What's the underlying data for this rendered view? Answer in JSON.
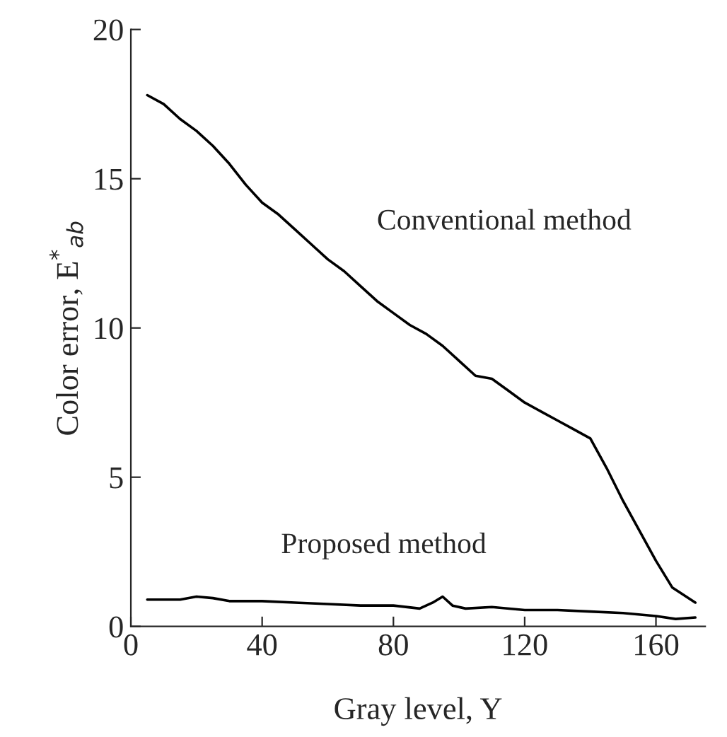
{
  "chart_data": {
    "type": "line",
    "xlabel": "Gray level, Y",
    "ylabel": "Color error, E$^{*}$$_{ab}$",
    "xlim": [
      0,
      175
    ],
    "ylim": [
      0,
      20
    ],
    "xticks": [
      0,
      40,
      80,
      120,
      160
    ],
    "yticks": [
      0,
      5,
      10,
      15,
      20
    ],
    "grid": false,
    "legend": false,
    "marker": "none",
    "line_style": "solid",
    "series": [
      {
        "name": "Conventional method",
        "color": "#000000",
        "x": [
          5,
          10,
          15,
          20,
          25,
          30,
          35,
          40,
          45,
          50,
          55,
          60,
          65,
          70,
          75,
          80,
          85,
          90,
          95,
          100,
          105,
          110,
          115,
          120,
          125,
          130,
          135,
          140,
          145,
          150,
          155,
          160,
          165,
          172
        ],
        "values": [
          17.8,
          17.5,
          17.0,
          16.6,
          16.1,
          15.5,
          14.8,
          14.2,
          13.8,
          13.3,
          12.8,
          12.3,
          11.9,
          11.4,
          10.9,
          10.5,
          10.1,
          9.8,
          9.4,
          8.9,
          8.4,
          8.3,
          7.9,
          7.5,
          7.2,
          6.9,
          6.6,
          6.3,
          5.3,
          4.2,
          3.2,
          2.2,
          1.3,
          0.8
        ]
      },
      {
        "name": "Proposed method",
        "color": "#000000",
        "x": [
          5,
          10,
          15,
          20,
          25,
          30,
          40,
          50,
          60,
          70,
          80,
          88,
          92,
          95,
          98,
          102,
          110,
          120,
          130,
          140,
          150,
          160,
          166,
          172
        ],
        "values": [
          0.9,
          0.9,
          0.9,
          1.0,
          0.95,
          0.85,
          0.85,
          0.8,
          0.75,
          0.7,
          0.7,
          0.6,
          0.8,
          1.0,
          0.7,
          0.6,
          0.65,
          0.55,
          0.55,
          0.5,
          0.45,
          0.35,
          0.25,
          0.3
        ]
      }
    ]
  }
}
